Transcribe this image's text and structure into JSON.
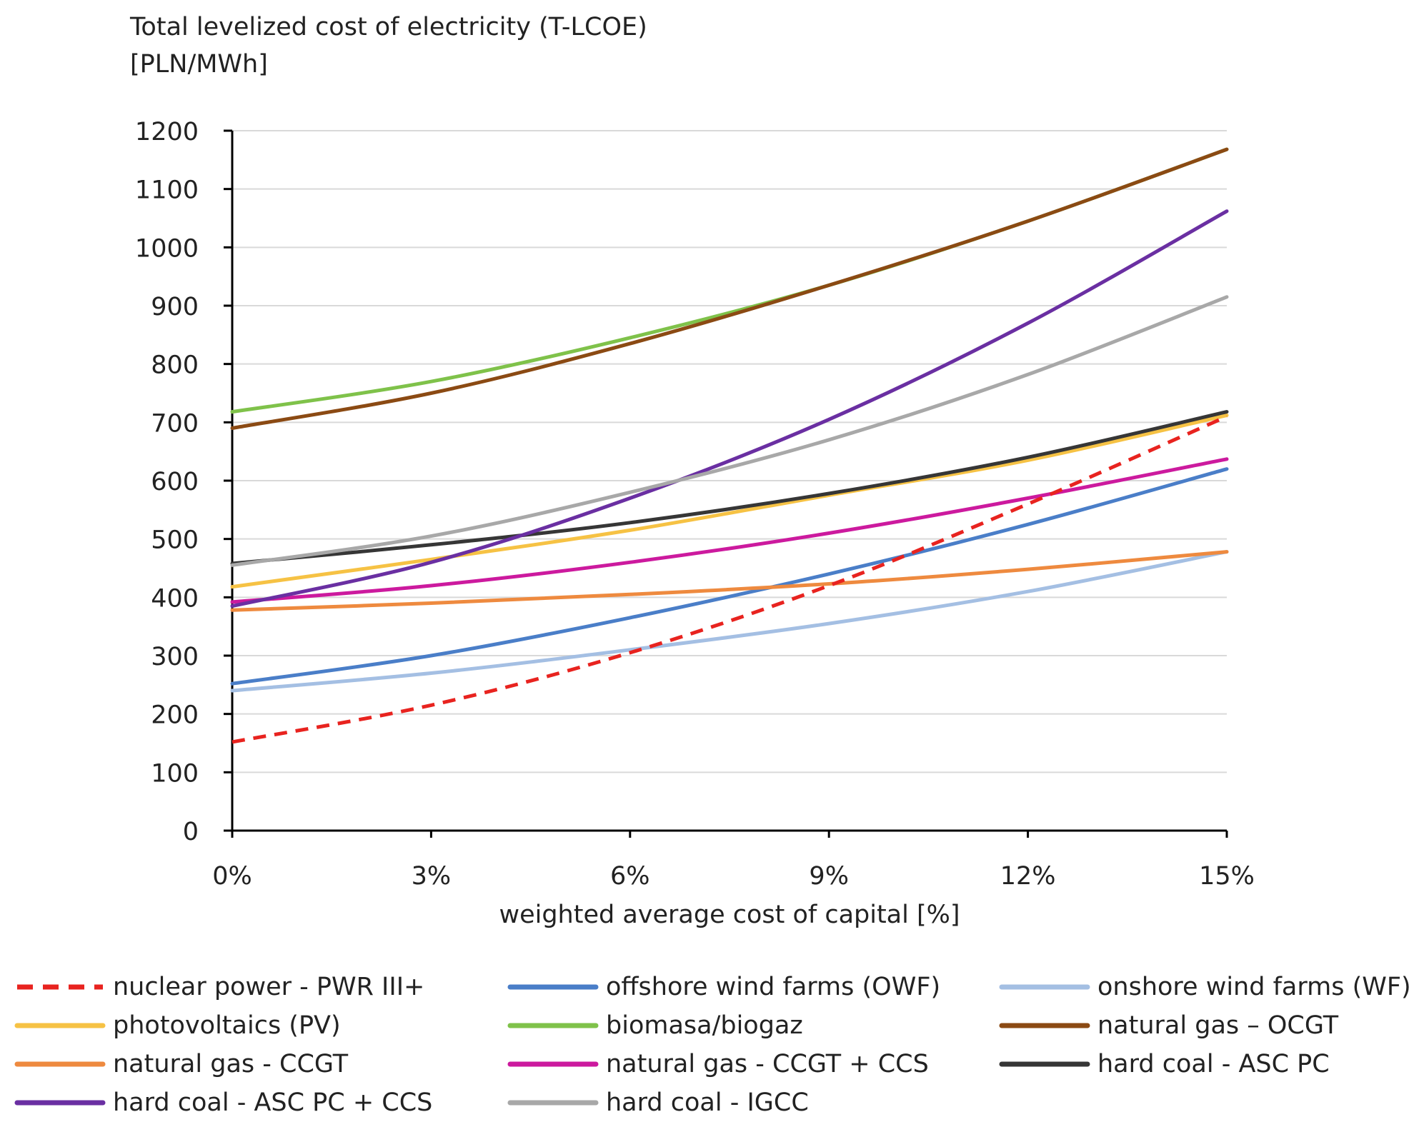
{
  "chart_data": {
    "type": "line",
    "title": "",
    "ylabel_lines": [
      "Total levelized cost of electricity (T-LCOE)",
      "[PLN/MWh]"
    ],
    "xlabel": "weighted average cost of capital [%]",
    "x": [
      0,
      3,
      6,
      9,
      12,
      15
    ],
    "x_tick_labels": [
      "0%",
      "3%",
      "6%",
      "9%",
      "12%",
      "15%"
    ],
    "xlim": [
      0,
      15
    ],
    "ylim": [
      0,
      1200
    ],
    "y_ticks": [
      0,
      100,
      200,
      300,
      400,
      500,
      600,
      700,
      800,
      900,
      1000,
      1100,
      1200
    ],
    "grid": true,
    "legend_position": "bottom",
    "series": [
      {
        "name": "nuclear power - PWR III+",
        "color": "#e8231f",
        "dashed": true,
        "values": [
          152,
          215,
          305,
          420,
          560,
          710
        ]
      },
      {
        "name": "offshore wind farms (OWF)",
        "color": "#4a7ec8",
        "dashed": false,
        "values": [
          252,
          300,
          365,
          440,
          525,
          620
        ]
      },
      {
        "name": "onshore wind farms (WF)",
        "color": "#a4bfe3",
        "dashed": false,
        "values": [
          240,
          270,
          310,
          355,
          410,
          478
        ]
      },
      {
        "name": "photovoltaics (PV)",
        "color": "#f6c244",
        "dashed": false,
        "values": [
          418,
          465,
          515,
          575,
          635,
          712
        ]
      },
      {
        "name": "biomasa/biogaz",
        "color": "#7fc24a",
        "dashed": false,
        "values": [
          718,
          770,
          845,
          935,
          1045,
          1168
        ]
      },
      {
        "name": "natural gas – OCGT",
        "color": "#8b4a13",
        "dashed": false,
        "values": [
          690,
          750,
          835,
          935,
          1045,
          1168
        ]
      },
      {
        "name": "natural gas - CCGT",
        "color": "#ee8a3f",
        "dashed": false,
        "values": [
          378,
          390,
          405,
          423,
          448,
          478
        ]
      },
      {
        "name": "natural gas - CCGT + CCS",
        "color": "#cc1a9e",
        "dashed": false,
        "values": [
          392,
          420,
          460,
          510,
          570,
          637
        ]
      },
      {
        "name": "hard coal - ASC PC",
        "color": "#363636",
        "dashed": false,
        "values": [
          458,
          490,
          528,
          578,
          640,
          718
        ]
      },
      {
        "name": "hard coal - ASC PC + CCS",
        "color": "#6a2fa2",
        "dashed": false,
        "values": [
          385,
          460,
          570,
          705,
          870,
          1062
        ]
      },
      {
        "name": "hard coal - IGCC",
        "color": "#a8a8a8",
        "dashed": false,
        "values": [
          455,
          505,
          580,
          670,
          782,
          915
        ]
      }
    ]
  }
}
